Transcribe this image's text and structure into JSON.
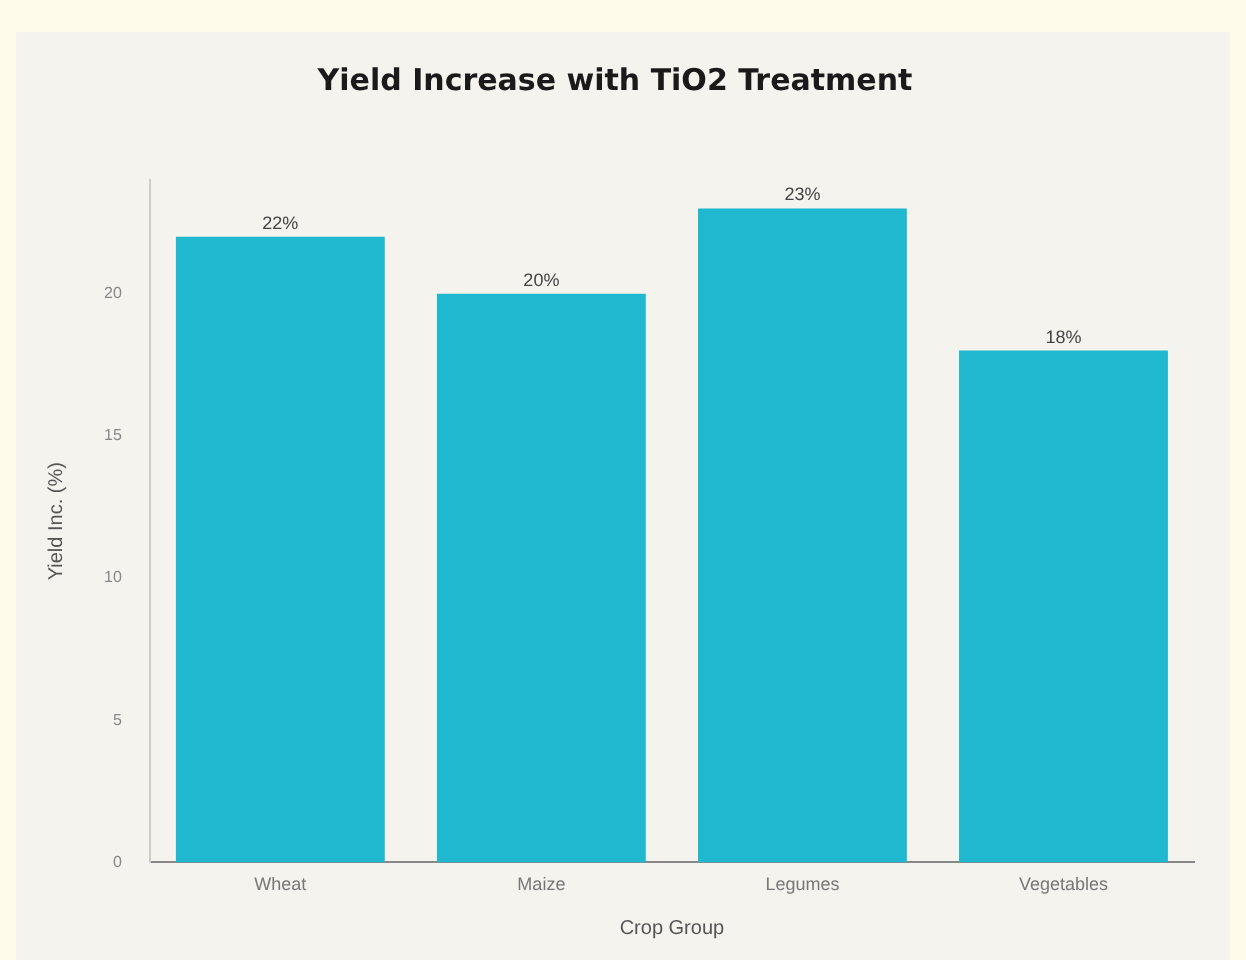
{
  "chart_data": {
    "type": "bar",
    "title": "Yield Increase with TiO2 Treatment",
    "xlabel": "Crop Group",
    "ylabel": "Yield Inc. (%)",
    "categories": [
      "Wheat",
      "Maize",
      "Legumes",
      "Vegetables"
    ],
    "values": [
      22,
      20,
      23,
      18
    ],
    "value_labels": [
      "22%",
      "20%",
      "23%",
      "18%"
    ],
    "color": "#1fb8cf",
    "ylim": [
      0,
      24
    ],
    "yticks": [
      0,
      5,
      10,
      15,
      20
    ],
    "grid": false,
    "legend": false
  }
}
